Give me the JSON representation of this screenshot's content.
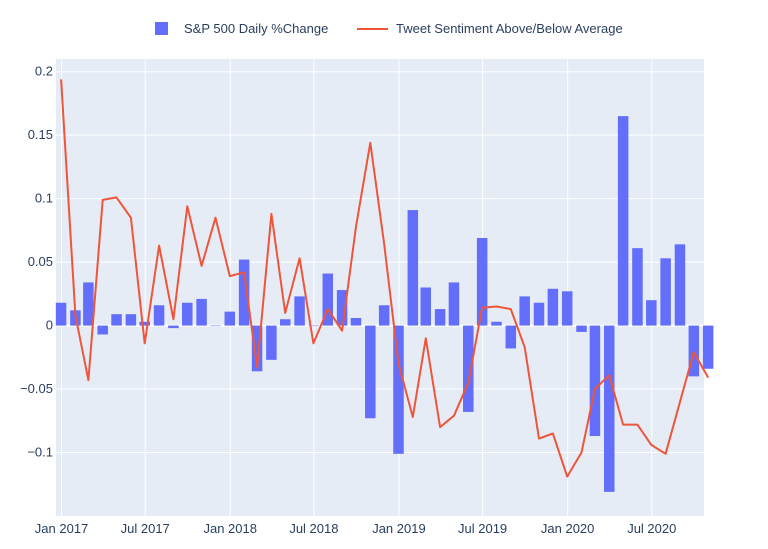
{
  "chart_data": {
    "type": "bar+line",
    "legend_position": "top-center",
    "grid": true,
    "ylim": [
      -0.15,
      0.21
    ],
    "xlim": [
      "2016-12-20",
      "2020-10-22"
    ],
    "y_ticks": [
      {
        "value": 0.2,
        "label": "0.2"
      },
      {
        "value": 0.15,
        "label": "0.15"
      },
      {
        "value": 0.1,
        "label": "0.1"
      },
      {
        "value": 0.05,
        "label": "0.05"
      },
      {
        "value": 0,
        "label": "0"
      },
      {
        "value": -0.05,
        "label": "−0.05"
      },
      {
        "value": -0.1,
        "label": "−0.1"
      }
    ],
    "x_ticks": [
      {
        "date": "2017-01-01",
        "label": "Jan 2017"
      },
      {
        "date": "2017-07-01",
        "label": "Jul 2017"
      },
      {
        "date": "2018-01-01",
        "label": "Jan 2018"
      },
      {
        "date": "2018-07-01",
        "label": "Jul 2018"
      },
      {
        "date": "2019-01-01",
        "label": "Jan 2019"
      },
      {
        "date": "2019-07-01",
        "label": "Jul 2019"
      },
      {
        "date": "2020-01-01",
        "label": "Jan 2020"
      },
      {
        "date": "2020-07-01",
        "label": "Jul 2020"
      }
    ],
    "series": [
      {
        "name": "S&P 500 Daily %Change",
        "kind": "bar",
        "color": "#636efa",
        "points": [
          [
            "2016-12-31",
            0.018
          ],
          [
            "2017-01-31",
            0.012
          ],
          [
            "2017-02-28",
            0.034
          ],
          [
            "2017-03-31",
            -0.007
          ],
          [
            "2017-04-30",
            0.009
          ],
          [
            "2017-05-31",
            0.009
          ],
          [
            "2017-06-30",
            0.003
          ],
          [
            "2017-07-31",
            0.016
          ],
          [
            "2017-08-31",
            -0.002
          ],
          [
            "2017-09-30",
            0.018
          ],
          [
            "2017-10-31",
            0.021
          ],
          [
            "2017-11-30",
            0.0
          ],
          [
            "2017-12-31",
            0.011
          ],
          [
            "2018-01-31",
            0.052
          ],
          [
            "2018-02-28",
            -0.036
          ],
          [
            "2018-03-31",
            -0.027
          ],
          [
            "2018-04-30",
            0.005
          ],
          [
            "2018-05-31",
            0.023
          ],
          [
            "2018-06-30",
            0.0
          ],
          [
            "2018-07-31",
            0.041
          ],
          [
            "2018-08-31",
            0.028
          ],
          [
            "2018-09-30",
            0.006
          ],
          [
            "2018-10-31",
            -0.073
          ],
          [
            "2018-11-30",
            0.016
          ],
          [
            "2018-12-31",
            -0.101
          ],
          [
            "2019-01-31",
            0.091
          ],
          [
            "2019-02-28",
            0.03
          ],
          [
            "2019-03-31",
            0.013
          ],
          [
            "2019-04-30",
            0.034
          ],
          [
            "2019-05-31",
            -0.068
          ],
          [
            "2019-06-30",
            0.069
          ],
          [
            "2019-07-31",
            0.003
          ],
          [
            "2019-08-31",
            -0.018
          ],
          [
            "2019-09-30",
            0.023
          ],
          [
            "2019-10-31",
            0.018
          ],
          [
            "2019-11-30",
            0.029
          ],
          [
            "2019-12-31",
            0.027
          ],
          [
            "2020-01-31",
            -0.005
          ],
          [
            "2020-02-29",
            -0.087
          ],
          [
            "2020-03-31",
            -0.131
          ],
          [
            "2020-04-30",
            0.165
          ],
          [
            "2020-05-31",
            0.061
          ],
          [
            "2020-06-30",
            0.02
          ],
          [
            "2020-07-31",
            0.053
          ],
          [
            "2020-08-31",
            0.064
          ],
          [
            "2020-09-30",
            -0.04
          ],
          [
            "2020-10-31",
            -0.034
          ]
        ]
      },
      {
        "name": "Tweet Sentiment Above/Below Average",
        "kind": "line",
        "color": "#ef553b",
        "points": [
          [
            "2016-12-31",
            0.194
          ],
          [
            "2017-01-31",
            0.008
          ],
          [
            "2017-02-28",
            -0.043
          ],
          [
            "2017-03-31",
            0.099
          ],
          [
            "2017-04-30",
            0.101
          ],
          [
            "2017-05-31",
            0.085
          ],
          [
            "2017-06-30",
            -0.014
          ],
          [
            "2017-07-31",
            0.063
          ],
          [
            "2017-08-31",
            0.005
          ],
          [
            "2017-09-30",
            0.094
          ],
          [
            "2017-10-31",
            0.047
          ],
          [
            "2017-11-30",
            0.085
          ],
          [
            "2017-12-31",
            0.039
          ],
          [
            "2018-01-31",
            0.042
          ],
          [
            "2018-02-28",
            -0.033
          ],
          [
            "2018-03-31",
            0.088
          ],
          [
            "2018-04-30",
            0.01
          ],
          [
            "2018-05-31",
            0.053
          ],
          [
            "2018-06-30",
            -0.014
          ],
          [
            "2018-07-31",
            0.013
          ],
          [
            "2018-08-31",
            -0.004
          ],
          [
            "2018-09-30",
            0.078
          ],
          [
            "2018-10-31",
            0.144
          ],
          [
            "2018-11-30",
            0.064
          ],
          [
            "2018-12-31",
            -0.03
          ],
          [
            "2019-01-31",
            -0.072
          ],
          [
            "2019-02-28",
            -0.01
          ],
          [
            "2019-03-31",
            -0.08
          ],
          [
            "2019-04-30",
            -0.071
          ],
          [
            "2019-05-31",
            -0.045
          ],
          [
            "2019-06-30",
            0.014
          ],
          [
            "2019-07-31",
            0.015
          ],
          [
            "2019-08-31",
            0.013
          ],
          [
            "2019-09-30",
            -0.017
          ],
          [
            "2019-10-31",
            -0.089
          ],
          [
            "2019-11-30",
            -0.085
          ],
          [
            "2019-12-31",
            -0.119
          ],
          [
            "2020-01-31",
            -0.1
          ],
          [
            "2020-02-29",
            -0.05
          ],
          [
            "2020-03-31",
            -0.039
          ],
          [
            "2020-04-30",
            -0.078
          ],
          [
            "2020-05-31",
            -0.078
          ],
          [
            "2020-06-30",
            -0.094
          ],
          [
            "2020-07-31",
            -0.101
          ],
          [
            "2020-08-31",
            -0.06
          ],
          [
            "2020-09-30",
            -0.021
          ],
          [
            "2020-10-31",
            -0.041
          ]
        ]
      }
    ]
  }
}
